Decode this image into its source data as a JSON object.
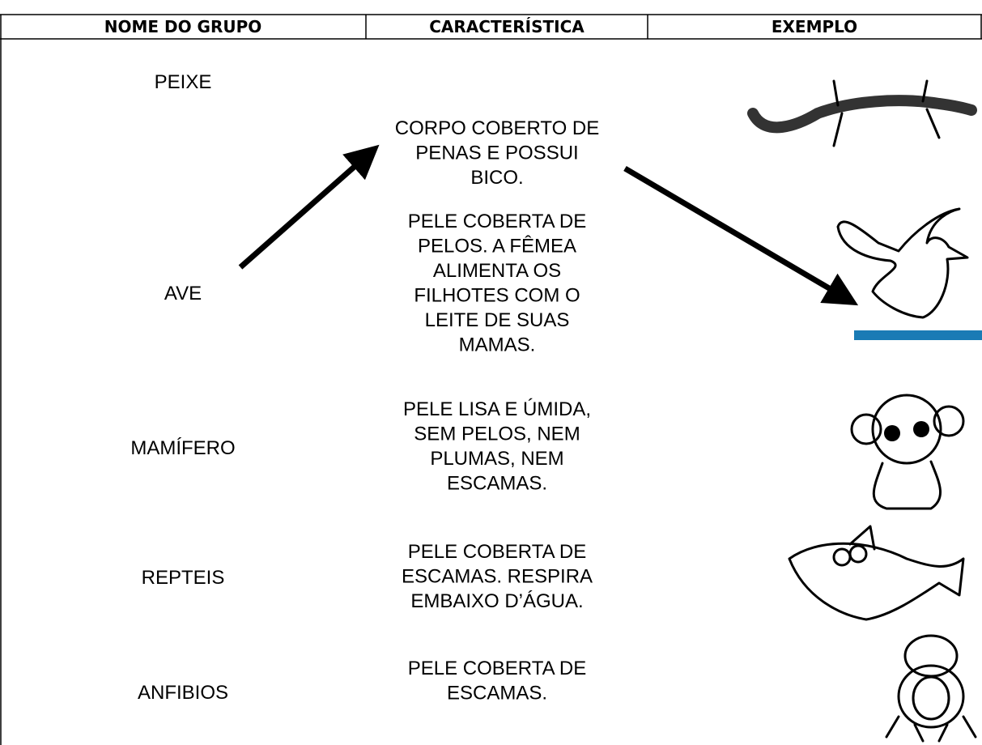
{
  "header": {
    "columns": [
      "NOME DO GRUPO",
      "CARACTERÍSTICA",
      "EXEMPLO"
    ]
  },
  "groups": [
    "PEIXE",
    "AVE",
    "MAMÍFERO",
    "REPTEIS",
    "ANFIBIOS"
  ],
  "characteristics": [
    [
      "CORPO COBERTO DE",
      "PENAS E POSSUI",
      "BICO."
    ],
    [
      "PELE COBERTA DE",
      "PELOS. A FÊMEA",
      "ALIMENTA OS",
      "FILHOTES COM O",
      "LEITE DE SUAS",
      "MAMAS."
    ],
    [
      "PELE LISA E ÚMIDA,",
      "SEM PELOS, NEM",
      "PLUMAS, NEM",
      "ESCAMAS."
    ],
    [
      "PELE COBERTA DE",
      "ESCAMAS. RESPIRA",
      "EMBAIXO D’ÁGUA."
    ],
    [
      "PELE COBERTA DE",
      "ESCAMAS."
    ]
  ]
}
